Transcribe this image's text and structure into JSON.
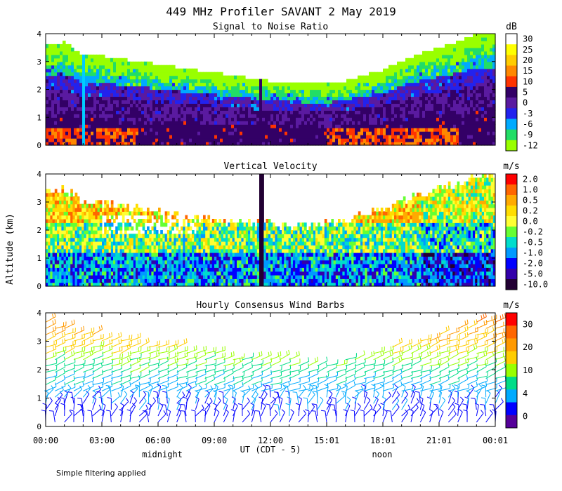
{
  "title": "449 MHz Profiler SAVANT  2 May 2019",
  "ylabel": "Altitude (km)",
  "footnote": "Simple filtering applied",
  "time_axis": {
    "ticks": [
      "00:00",
      "03:00",
      "06:00",
      "09:00",
      "12:00",
      "15:01",
      "18:01",
      "21:01",
      "00:01"
    ],
    "label": "UT  (CDT - 5)",
    "sublabels": [
      "midnight",
      "noon"
    ]
  },
  "chart_data": [
    {
      "type": "heatmap",
      "title": "Signal to Noise Ratio",
      "xlabel": "UT (CDT - 5)",
      "ylabel": "Altitude (km)",
      "xlim": [
        0,
        24
      ],
      "ylim": [
        0,
        4
      ],
      "yticks": [
        "0",
        "1",
        "2",
        "3",
        "4"
      ],
      "colorbar": {
        "unit": "dB",
        "labels": [
          "30",
          "25",
          "20",
          "15",
          "10",
          "5",
          "0",
          "-3",
          "-6",
          "-9",
          "-12"
        ],
        "colors": [
          "#ffffff",
          "#ffff00",
          "#ffcc00",
          "#ff8800",
          "#ff3300",
          "#330066",
          "#5a1aa0",
          "#2222ee",
          "#00aaff",
          "#22dd66",
          "#99ff00"
        ]
      },
      "echo_top_km": [
        3.6,
        3.7,
        3.2,
        3.2,
        3.1,
        3.0,
        2.9,
        2.8,
        2.7,
        2.6,
        2.5,
        2.4,
        2.3,
        2.3,
        2.2,
        2.2,
        2.3,
        2.5,
        2.7,
        3.0,
        3.3,
        3.5,
        3.7,
        4.0,
        4.0
      ],
      "missing_hours": [
        [
          1.9,
          2.1
        ],
        [
          11.4,
          11.6
        ]
      ]
    },
    {
      "type": "heatmap",
      "title": "Vertical Velocity",
      "xlabel": "UT (CDT - 5)",
      "ylabel": "Altitude (km)",
      "xlim": [
        0,
        24
      ],
      "ylim": [
        0,
        4
      ],
      "yticks": [
        "0",
        "1",
        "2",
        "3",
        "4"
      ],
      "colorbar": {
        "unit": "m/s",
        "labels": [
          "2.0",
          "1.0",
          "0.5",
          "0.2",
          "0.0",
          "-0.2",
          "-0.5",
          "-1.0",
          "-2.0",
          "-5.0",
          "-10.0"
        ],
        "colors": [
          "#ff0000",
          "#ff6600",
          "#ffaa00",
          "#ffdd00",
          "#ffff33",
          "#66ff33",
          "#00ddcc",
          "#0099ff",
          "#0000ff",
          "#3300aa",
          "#220033"
        ]
      },
      "echo_top_km": [
        3.5,
        3.6,
        3.2,
        3.1,
        3.0,
        2.9,
        2.8,
        2.7,
        2.6,
        2.5,
        2.4,
        2.4,
        2.4,
        2.3,
        2.3,
        2.4,
        2.5,
        2.7,
        2.9,
        3.2,
        3.4,
        3.6,
        3.8,
        4.0,
        4.0
      ],
      "missing_hours": [
        [
          11.4,
          11.6
        ]
      ]
    },
    {
      "type": "scatter",
      "title": "Hourly Consensus Wind Barbs",
      "xlabel": "UT (CDT - 5)",
      "ylabel": "Altitude (km)",
      "xlim": [
        0,
        24
      ],
      "ylim": [
        0,
        4
      ],
      "yticks": [
        "0",
        "1",
        "2",
        "3",
        "4"
      ],
      "colorbar": {
        "unit": "m/s",
        "labels": [
          "30",
          "20",
          "10",
          "4",
          "0"
        ],
        "colors": [
          "#ff0000",
          "#ff6600",
          "#ff9900",
          "#ffcc00",
          "#99ff00",
          "#00dd88",
          "#00aaff",
          "#0000ff",
          "#550099"
        ]
      },
      "speed_profile_ms": {
        "altitude_km": [
          0.25,
          0.75,
          1.25,
          1.75,
          2.25,
          2.75,
          3.25,
          3.75
        ],
        "speed": [
          4,
          6,
          8,
          11,
          15,
          19,
          23,
          25
        ]
      },
      "barb_top_km": [
        3.7,
        3.6,
        3.3,
        3.2,
        3.1,
        3.0,
        2.9,
        2.8,
        2.7,
        2.6,
        2.5,
        2.4,
        2.4,
        2.4,
        2.3,
        2.3,
        2.4,
        2.5,
        2.7,
        2.9,
        3.1,
        3.3,
        3.5,
        3.7,
        3.8
      ]
    }
  ]
}
